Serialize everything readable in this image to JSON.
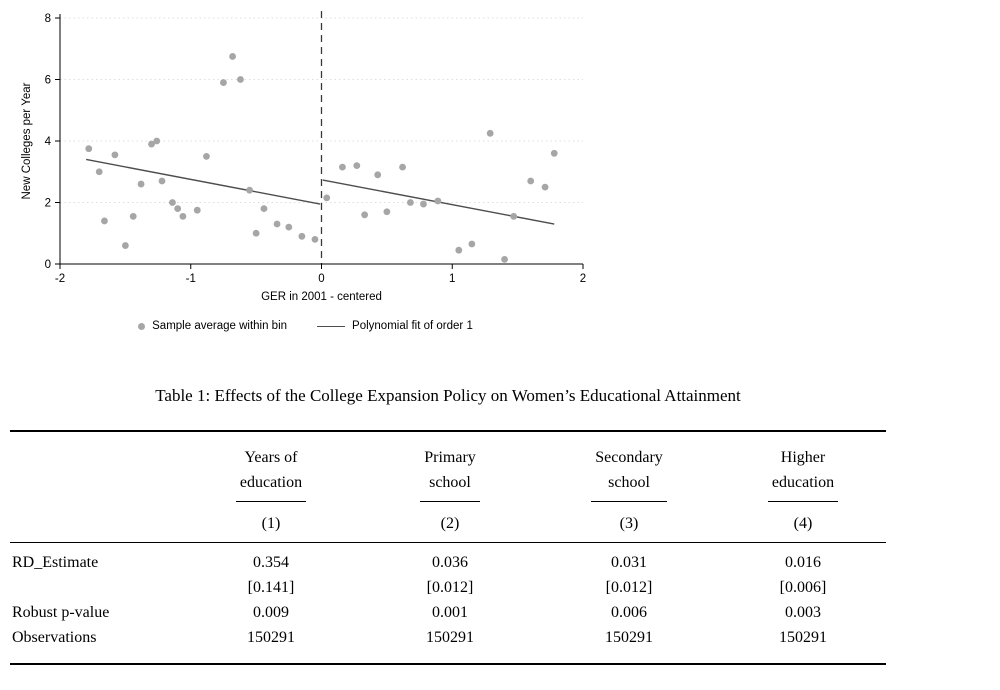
{
  "chart_data": {
    "type": "scatter",
    "title": "",
    "xlabel": "GER in 2001 - centered",
    "ylabel": "New Colleges per Year",
    "xlim": [
      -2,
      2
    ],
    "ylim": [
      0,
      8
    ],
    "xticks": [
      -2,
      -1,
      0,
      1,
      2
    ],
    "yticks": [
      0,
      2,
      4,
      6,
      8
    ],
    "grid": "horizontal-dashed",
    "cutoff_x": 0,
    "point_color": "#a6a6a6",
    "line_color": "#4d4d4d",
    "cutoff_color": "#3a3a3a",
    "legend": [
      "Sample average within bin",
      "Polynomial fit of order 1"
    ],
    "legend_position": "bottom",
    "points": [
      [
        -1.78,
        3.75
      ],
      [
        -1.7,
        3.0
      ],
      [
        -1.66,
        1.4
      ],
      [
        -1.58,
        3.55
      ],
      [
        -1.5,
        0.6
      ],
      [
        -1.44,
        1.55
      ],
      [
        -1.38,
        2.6
      ],
      [
        -1.3,
        3.9
      ],
      [
        -1.26,
        4.0
      ],
      [
        -1.22,
        2.7
      ],
      [
        -1.14,
        2.0
      ],
      [
        -1.1,
        1.8
      ],
      [
        -1.06,
        1.55
      ],
      [
        -0.95,
        1.75
      ],
      [
        -0.88,
        3.5
      ],
      [
        -0.75,
        5.9
      ],
      [
        -0.68,
        6.75
      ],
      [
        -0.62,
        6.0
      ],
      [
        -0.55,
        2.4
      ],
      [
        -0.5,
        1.0
      ],
      [
        -0.44,
        1.8
      ],
      [
        -0.34,
        1.3
      ],
      [
        -0.25,
        1.2
      ],
      [
        -0.15,
        0.9
      ],
      [
        -0.05,
        0.8
      ],
      [
        0.04,
        2.15
      ],
      [
        0.16,
        3.15
      ],
      [
        0.27,
        3.2
      ],
      [
        0.33,
        1.6
      ],
      [
        0.43,
        2.9
      ],
      [
        0.5,
        1.7
      ],
      [
        0.62,
        3.15
      ],
      [
        0.68,
        2.0
      ],
      [
        0.78,
        1.95
      ],
      [
        0.89,
        2.05
      ],
      [
        1.05,
        0.45
      ],
      [
        1.15,
        0.65
      ],
      [
        1.29,
        4.25
      ],
      [
        1.4,
        0.15
      ],
      [
        1.47,
        1.55
      ],
      [
        1.6,
        2.7
      ],
      [
        1.71,
        2.5
      ],
      [
        1.78,
        3.6
      ]
    ],
    "fit_segments": [
      {
        "x1": -1.8,
        "y1": 3.4,
        "x2": -0.01,
        "y2": 1.95
      },
      {
        "x1": 0.01,
        "y1": 2.73,
        "x2": 1.78,
        "y2": 1.3
      }
    ]
  },
  "table": {
    "title": "Table 1: Effects of the College Expansion Policy on Women’s Educational Attainment",
    "col_headers": [
      {
        "line1": "Years of",
        "line2": "education",
        "num": "(1)"
      },
      {
        "line1": "Primary",
        "line2": "school",
        "num": "(2)"
      },
      {
        "line1": "Secondary",
        "line2": "school",
        "num": "(3)"
      },
      {
        "line1": "Higher",
        "line2": "education",
        "num": "(4)"
      }
    ],
    "rows": [
      {
        "label": "RD_Estimate",
        "values": [
          "0.354",
          "0.036",
          "0.031",
          "0.016"
        ]
      },
      {
        "label": "",
        "values": [
          "[0.141]",
          "[0.012]",
          "[0.012]",
          "[0.006]"
        ]
      },
      {
        "label": "Robust p-value",
        "values": [
          "0.009",
          "0.001",
          "0.006",
          "0.003"
        ]
      },
      {
        "label": "Observations",
        "values": [
          "150291",
          "150291",
          "150291",
          "150291"
        ]
      }
    ]
  }
}
